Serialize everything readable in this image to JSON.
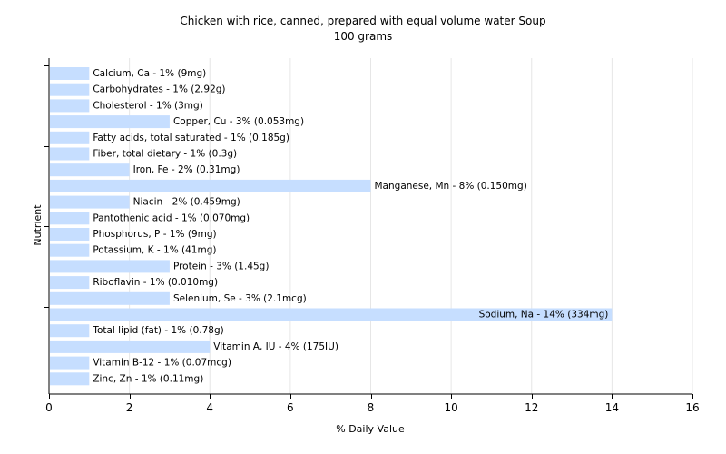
{
  "chart_data": {
    "type": "bar",
    "orientation": "horizontal",
    "title": "Chicken with rice, canned, prepared with equal volume water Soup",
    "subtitle": "100 grams",
    "xlabel": "% Daily Value",
    "ylabel": "Nutrient",
    "xlim": [
      0,
      16
    ],
    "xticks": [
      0,
      2,
      4,
      6,
      8,
      10,
      12,
      14,
      16
    ],
    "grid": true,
    "bar_color": "#c6deff",
    "categories": [
      "Calcium, Ca",
      "Carbohydrates",
      "Cholesterol",
      "Copper, Cu",
      "Fatty acids, total saturated",
      "Fiber, total dietary",
      "Iron, Fe",
      "Manganese, Mn",
      "Niacin",
      "Pantothenic acid",
      "Phosphorus, P",
      "Potassium, K",
      "Protein",
      "Riboflavin",
      "Selenium, Se",
      "Sodium, Na",
      "Total lipid (fat)",
      "Vitamin A, IU",
      "Vitamin B-12",
      "Zinc, Zn"
    ],
    "values": [
      1,
      1,
      1,
      3,
      1,
      1,
      2,
      8,
      2,
      1,
      1,
      1,
      3,
      1,
      3,
      14,
      1,
      4,
      1,
      1
    ],
    "labels": [
      "Calcium, Ca - 1% (9mg)",
      "Carbohydrates - 1% (2.92g)",
      "Cholesterol - 1% (3mg)",
      "Copper, Cu - 3% (0.053mg)",
      "Fatty acids, total saturated - 1% (0.185g)",
      "Fiber, total dietary - 1% (0.3g)",
      "Iron, Fe - 2% (0.31mg)",
      "Manganese, Mn - 8% (0.150mg)",
      "Niacin - 2% (0.459mg)",
      "Pantothenic acid - 1% (0.070mg)",
      "Phosphorus, P - 1% (9mg)",
      "Potassium, K - 1% (41mg)",
      "Protein - 3% (1.45g)",
      "Riboflavin - 1% (0.010mg)",
      "Selenium, Se - 3% (2.1mcg)",
      "Sodium, Na - 14% (334mg)",
      "Total lipid (fat) - 1% (0.78g)",
      "Vitamin A, IU - 4% (175IU)",
      "Vitamin B-12 - 1% (0.07mcg)",
      "Zinc, Zn - 1% (0.11mg)"
    ]
  }
}
